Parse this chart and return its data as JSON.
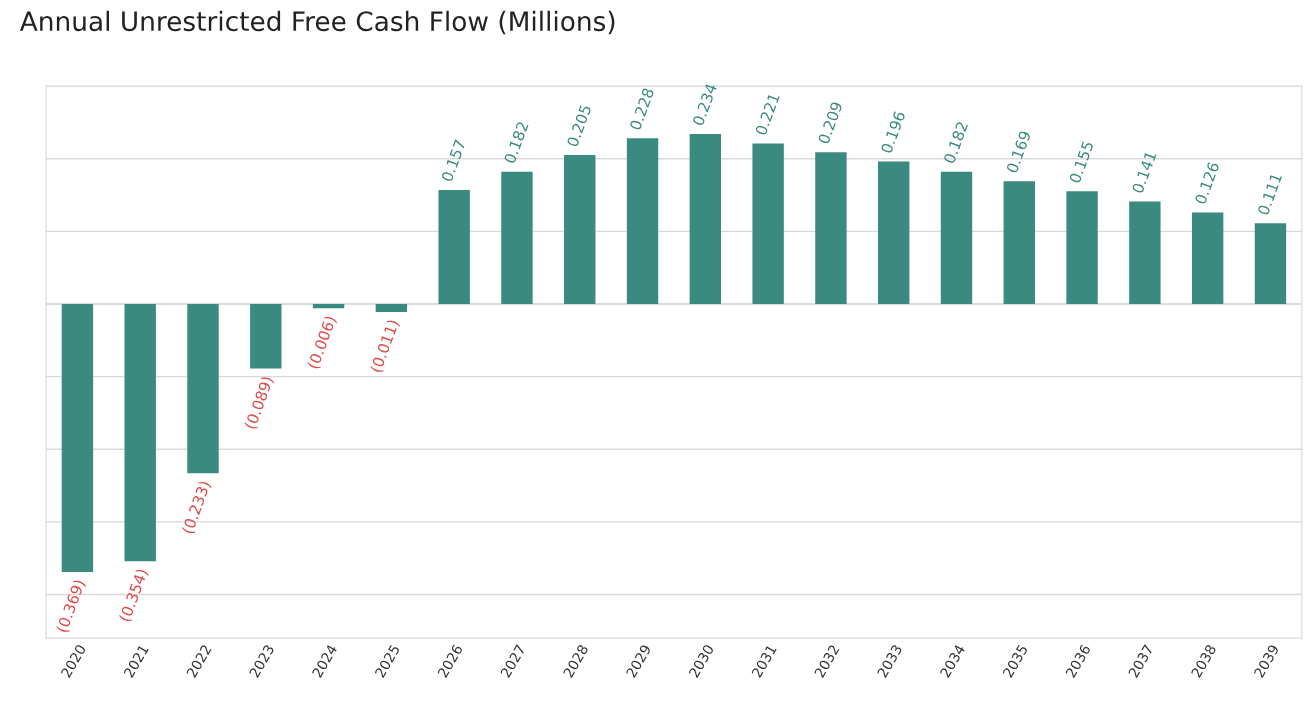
{
  "chart_data": {
    "type": "bar",
    "title": "Annual Unrestricted Free Cash Flow (Millions)",
    "categories": [
      "2020",
      "2021",
      "2022",
      "2023",
      "2024",
      "2025",
      "2026",
      "2027",
      "2028",
      "2029",
      "2030",
      "2031",
      "2032",
      "2033",
      "2034",
      "2035",
      "2036",
      "2037",
      "2038",
      "2039"
    ],
    "values": [
      -0.369,
      -0.354,
      -0.233,
      -0.089,
      -0.006,
      -0.011,
      0.157,
      0.182,
      0.205,
      0.228,
      0.234,
      0.221,
      0.209,
      0.196,
      0.182,
      0.169,
      0.155,
      0.141,
      0.126,
      0.111
    ],
    "value_labels": [
      "(0.369)",
      "(0.354)",
      "(0.233)",
      "(0.089)",
      "(0.006)",
      "(0.011)",
      "0.157",
      "0.182",
      "0.205",
      "0.228",
      "0.234",
      "0.221",
      "0.209",
      "0.196",
      "0.182",
      "0.169",
      "0.155",
      "0.141",
      "0.126",
      "0.111"
    ],
    "color": "#3a8a80",
    "ylim": [
      -0.46,
      0.3
    ],
    "yticks": [
      {
        "value": -0.4,
        "label": null
      },
      {
        "value": -0.3,
        "label": null
      },
      {
        "value": -0.2,
        "label": null
      },
      {
        "value": -0.1,
        "label": null
      },
      {
        "value": 0,
        "label": null
      },
      {
        "value": 0.1,
        "label": null
      },
      {
        "value": 0.2,
        "label": null
      },
      {
        "value": 0.3,
        "label": null
      }
    ],
    "tick_labels": "x",
    "grid": "y",
    "legend": false
  }
}
